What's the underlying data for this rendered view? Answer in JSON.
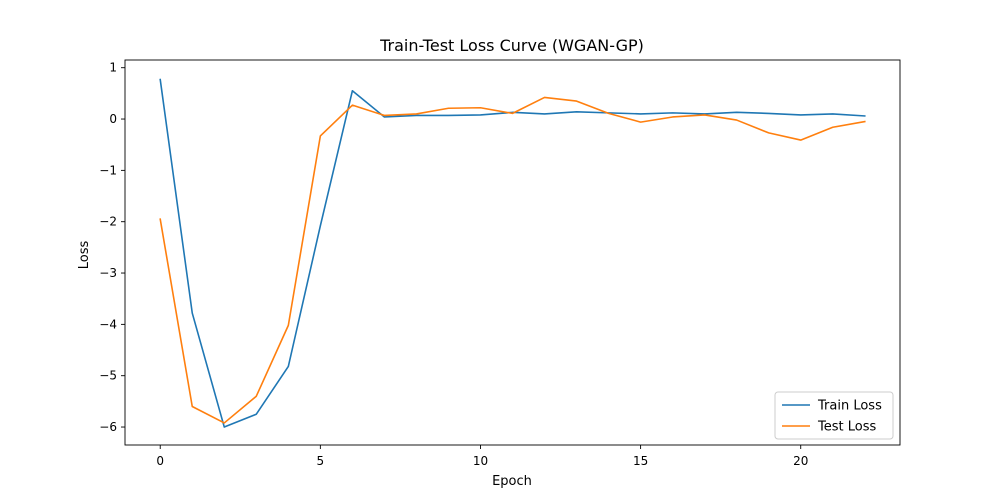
{
  "chart_data": {
    "type": "line",
    "title": "Train-Test Loss Curve (WGAN-GP)",
    "xlabel": "Epoch",
    "ylabel": "Loss",
    "xlim": [
      -1.1,
      23.1
    ],
    "ylim": [
      -6.35,
      1.15
    ],
    "xticks": [
      0,
      5,
      10,
      15,
      20
    ],
    "yticks": [
      1,
      0,
      -1,
      -2,
      -3,
      -4,
      -5,
      -6
    ],
    "grid": false,
    "legend_position": "lower-right",
    "x": [
      0,
      1,
      2,
      3,
      4,
      5,
      6,
      7,
      8,
      9,
      10,
      11,
      12,
      13,
      14,
      15,
      16,
      17,
      18,
      19,
      20,
      21,
      22
    ],
    "series": [
      {
        "name": "Train Loss",
        "color": "#1f77b4",
        "values": [
          0.77,
          -3.78,
          -6.0,
          -5.75,
          -4.82,
          -2.08,
          0.55,
          0.04,
          0.07,
          0.07,
          0.08,
          0.13,
          0.1,
          0.14,
          0.12,
          0.1,
          0.12,
          0.1,
          0.13,
          0.11,
          0.08,
          0.1,
          0.06
        ]
      },
      {
        "name": "Test Loss",
        "color": "#ff7f0e",
        "values": [
          -1.95,
          -5.6,
          -5.92,
          -5.4,
          -4.02,
          -0.33,
          0.27,
          0.07,
          0.1,
          0.21,
          0.22,
          0.11,
          0.42,
          0.35,
          0.11,
          -0.06,
          0.04,
          0.08,
          -0.02,
          -0.27,
          -0.41,
          -0.16,
          -0.05
        ]
      }
    ]
  }
}
